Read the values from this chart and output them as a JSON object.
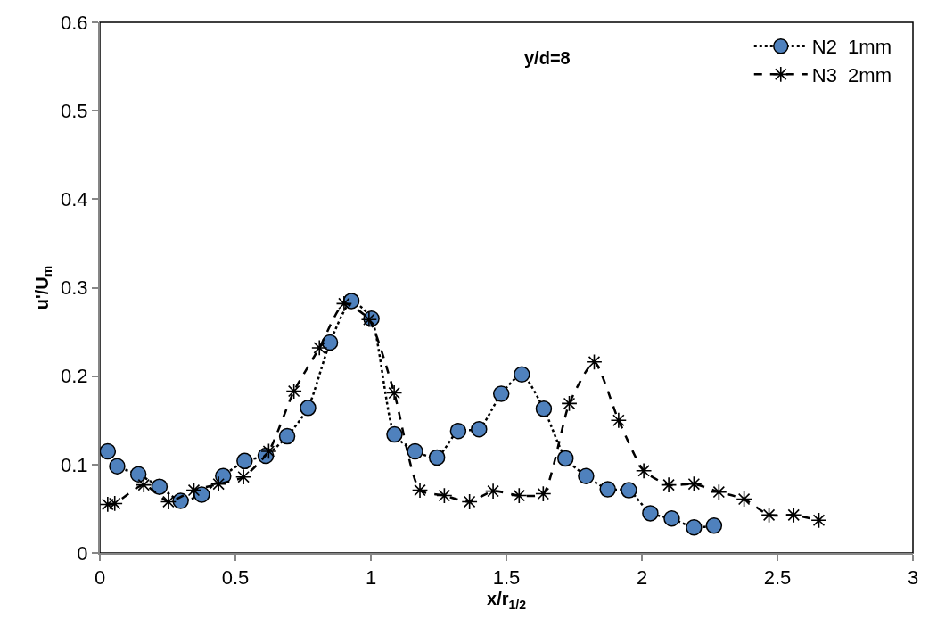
{
  "chart_data": {
    "type": "line",
    "xlabel": "x/r$_{1/2}$",
    "ylabel": "u'/U$_{m}$",
    "annotations": [
      "y/d=8"
    ],
    "xlim": [
      0,
      3
    ],
    "xticks": [
      0,
      0.5,
      1,
      1.5,
      2,
      2.5,
      3
    ],
    "ylim": [
      0,
      0.6
    ],
    "yticks": [
      0,
      0.1,
      0.2,
      0.3,
      0.4,
      0.5,
      0.6
    ],
    "grid": false,
    "legend": "top right",
    "series": [
      {
        "name": "N2  1mm",
        "color": "#4f81bd",
        "marker": "circle",
        "line_style": "dotted",
        "x": [
          0.029,
          0.064,
          0.142,
          0.22,
          0.298,
          0.376,
          0.455,
          0.534,
          0.612,
          0.691,
          0.768,
          0.849,
          0.928,
          1.002,
          1.087,
          1.163,
          1.244,
          1.322,
          1.399,
          1.481,
          1.557,
          1.638,
          1.718,
          1.794,
          1.874,
          1.952,
          2.031,
          2.11,
          2.192,
          2.266
        ],
        "values": [
          0.115,
          0.098,
          0.089,
          0.075,
          0.059,
          0.066,
          0.087,
          0.104,
          0.11,
          0.132,
          0.164,
          0.238,
          0.285,
          0.265,
          0.134,
          0.115,
          0.108,
          0.138,
          0.14,
          0.18,
          0.202,
          0.163,
          0.107,
          0.087,
          0.072,
          0.071,
          0.045,
          0.039,
          0.029,
          0.031
        ]
      },
      {
        "name": "N3  2mm",
        "color": "#000000",
        "marker": "cross",
        "line_style": "dashed",
        "x": [
          0.029,
          0.055,
          0.162,
          0.253,
          0.347,
          0.438,
          0.53,
          0.623,
          0.716,
          0.81,
          0.901,
          0.993,
          1.086,
          1.181,
          1.271,
          1.364,
          1.451,
          1.547,
          1.636,
          1.732,
          1.824,
          1.914,
          2.007,
          2.099,
          2.192,
          2.284,
          2.377,
          2.469,
          2.56,
          2.653
        ],
        "values": [
          0.055,
          0.056,
          0.077,
          0.058,
          0.071,
          0.078,
          0.086,
          0.115,
          0.183,
          0.232,
          0.282,
          0.264,
          0.181,
          0.071,
          0.065,
          0.058,
          0.07,
          0.065,
          0.067,
          0.169,
          0.216,
          0.15,
          0.093,
          0.077,
          0.078,
          0.069,
          0.061,
          0.043,
          0.043,
          0.037
        ]
      }
    ]
  }
}
